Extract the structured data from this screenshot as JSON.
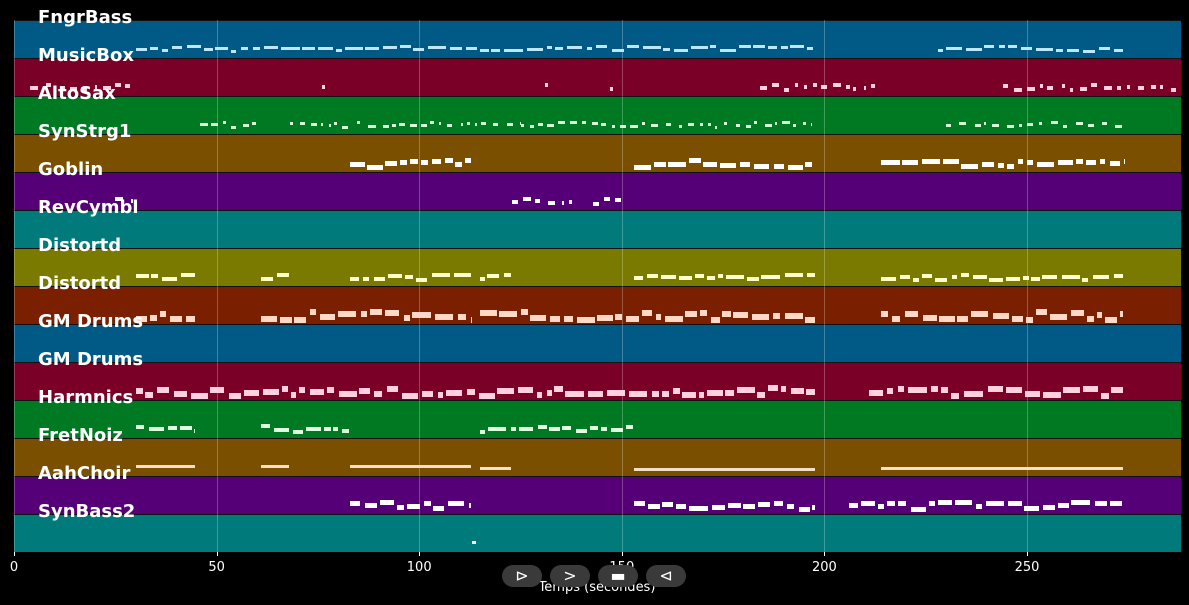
{
  "tracks": [
    {
      "name": "FngrBass",
      "color": "#005a85",
      "note_color": "#bfe6ff",
      "segments": [
        [
          30,
          198
        ],
        [
          228,
          274
        ]
      ],
      "thickness": 3,
      "density": "dense"
    },
    {
      "name": "MusicBox",
      "color": "#7a0028",
      "note_color": "#ffd0e0",
      "segments": [
        [
          4,
          29
        ],
        [
          76,
          77
        ],
        [
          131,
          132
        ],
        [
          147,
          148
        ],
        [
          184,
          214
        ],
        [
          244,
          287
        ]
      ],
      "thickness": 4,
      "density": "sparse"
    },
    {
      "name": "AltoSax",
      "color": "#007a22",
      "note_color": "#d8ffd8",
      "segments": [
        [
          46,
          60
        ],
        [
          68,
          125
        ],
        [
          125,
          155
        ],
        [
          155,
          197
        ],
        [
          230,
          274
        ]
      ],
      "thickness": 3,
      "density": "sparse"
    },
    {
      "name": "SynStrg1",
      "color": "#7a5000",
      "note_color": "#ffffff",
      "segments": [
        [
          83,
          113
        ],
        [
          153,
          198
        ],
        [
          214,
          274
        ]
      ],
      "thickness": 5,
      "density": "dense"
    },
    {
      "name": "Goblin",
      "color": "#550077",
      "note_color": "#ffffff",
      "segments": [
        [
          25,
          30
        ],
        [
          123,
          138
        ],
        [
          143,
          151
        ]
      ],
      "thickness": 4,
      "density": "sparse"
    },
    {
      "name": "RevCymbl",
      "color": "#007a7a",
      "note_color": "#ffffff",
      "segments": [],
      "thickness": 3,
      "density": "sparse"
    },
    {
      "name": "Distortd",
      "color": "#7a7a00",
      "note_color": "#ffffcc",
      "segments": [
        [
          30,
          45
        ],
        [
          61,
          68
        ],
        [
          83,
          113
        ],
        [
          115,
          123
        ],
        [
          153,
          198
        ],
        [
          214,
          274
        ]
      ],
      "thickness": 4,
      "density": "dense"
    },
    {
      "name": "Distortd",
      "color": "#7a2000",
      "note_color": "#ffd8c8",
      "segments": [
        [
          30,
          45
        ],
        [
          61,
          113
        ],
        [
          115,
          198
        ],
        [
          214,
          274
        ]
      ],
      "thickness": 6,
      "density": "dense"
    },
    {
      "name": "GM Drums",
      "color": "#005a85",
      "note_color": "#ffffff",
      "segments": [],
      "thickness": 3,
      "density": "sparse"
    },
    {
      "name": "GM Drums",
      "color": "#7a0028",
      "note_color": "#ffd0e0",
      "segments": [
        [
          30,
          198
        ],
        [
          211,
          274
        ]
      ],
      "thickness": 6,
      "density": "dense"
    },
    {
      "name": "Harmnics",
      "color": "#007a22",
      "note_color": "#e0ffe0",
      "segments": [
        [
          30,
          45
        ],
        [
          61,
          83
        ],
        [
          115,
          153
        ]
      ],
      "thickness": 4,
      "density": "dense"
    },
    {
      "name": "FretNoiz",
      "color": "#7a5000",
      "note_color": "#f0e0c8",
      "segments": [
        [
          30,
          45
        ],
        [
          61,
          68
        ],
        [
          83,
          113
        ],
        [
          115,
          123
        ],
        [
          153,
          198
        ],
        [
          214,
          274
        ]
      ],
      "thickness": 3,
      "density": "solid"
    },
    {
      "name": "AahChoir",
      "color": "#550077",
      "note_color": "#ffffff",
      "segments": [
        [
          83,
          113
        ],
        [
          153,
          198
        ],
        [
          206,
          274
        ]
      ],
      "thickness": 5,
      "density": "dense"
    },
    {
      "name": "SynBass2",
      "color": "#007a7a",
      "note_color": "#ffffff",
      "segments": [
        [
          113,
          115
        ]
      ],
      "thickness": 3,
      "density": "sparse"
    }
  ],
  "x_axis": {
    "label": "Temps (secondes)",
    "ticks": [
      "0",
      "50",
      "100",
      "150",
      "200",
      "250"
    ],
    "tick_values": [
      0,
      50,
      100,
      150,
      200,
      250
    ],
    "xlim": [
      0,
      288
    ]
  },
  "controls": [
    {
      "name": "play-icon",
      "glyph": "⊳"
    },
    {
      "name": "forward-icon",
      "glyph": ">"
    },
    {
      "name": "stop-icon",
      "glyph": "▬"
    },
    {
      "name": "back-icon",
      "glyph": "⊲"
    }
  ]
}
